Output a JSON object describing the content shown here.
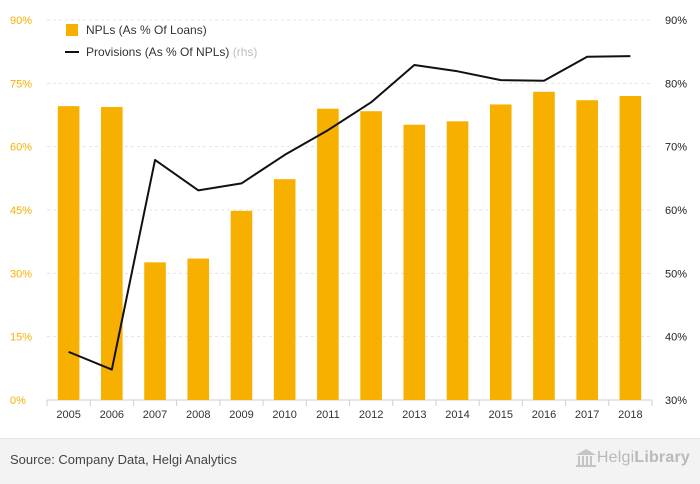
{
  "chart_data": {
    "type": "bar",
    "categories": [
      "2005",
      "2006",
      "2007",
      "2008",
      "2009",
      "2010",
      "2011",
      "2012",
      "2013",
      "2014",
      "2015",
      "2016",
      "2017",
      "2018"
    ],
    "series": [
      {
        "name": "NPLs (As % Of Loans)",
        "type": "bar",
        "axis": "left",
        "color": "#f7b000",
        "values": [
          69.6,
          69.4,
          32.6,
          33.5,
          44.8,
          52.3,
          69.0,
          68.4,
          65.2,
          66.0,
          70.0,
          73.0,
          71.0,
          72.0
        ]
      },
      {
        "name": "Provisions (As % Of NPLs)",
        "type": "line",
        "axis": "right",
        "color": "#111111",
        "values": [
          37.6,
          34.8,
          67.9,
          63.1,
          64.2,
          68.7,
          72.6,
          77.0,
          82.9,
          81.9,
          80.5,
          80.4,
          84.2,
          84.3
        ]
      }
    ],
    "y_left": {
      "ticks": [
        "0%",
        "15%",
        "30%",
        "45%",
        "60%",
        "75%",
        "90%"
      ],
      "range": [
        0,
        90
      ]
    },
    "y_right": {
      "ticks": [
        "30%",
        "40%",
        "50%",
        "60%",
        "70%",
        "80%",
        "90%"
      ],
      "range": [
        30,
        90
      ]
    },
    "legend": {
      "position": "top-left",
      "items": [
        "NPLs (As % Of Loans)",
        "Provisions (As % Of NPLs)"
      ],
      "rhs_tag": "(rhs)"
    },
    "left_tick_color": "#f7b000",
    "right_tick_color": "#222222"
  },
  "footer": {
    "source": "Source: Company Data, Helgi Analytics",
    "logo_text_light": "Helgi",
    "logo_text_bold": "Library"
  }
}
